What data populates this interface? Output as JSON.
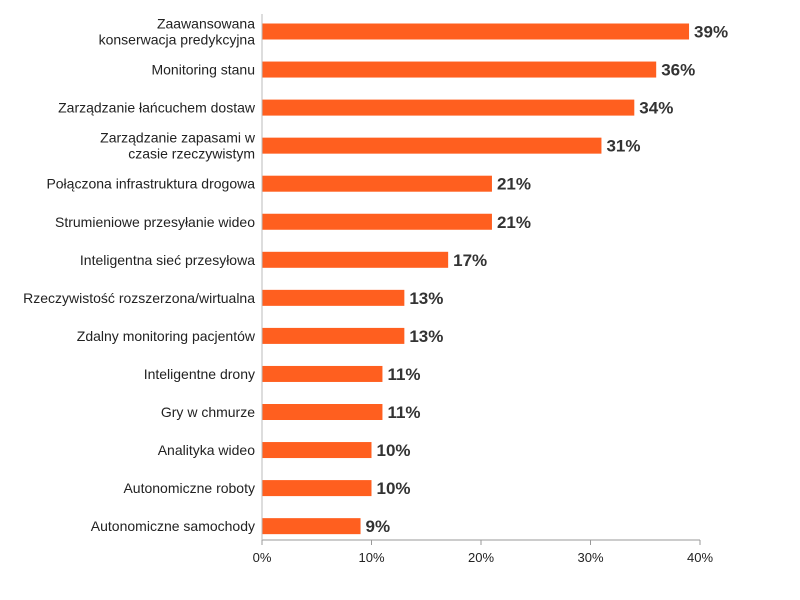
{
  "chart_data": {
    "type": "bar",
    "orientation": "horizontal",
    "categories": [
      [
        "Zaawansowana",
        "konserwacja predykcyjna"
      ],
      [
        "Monitoring stanu"
      ],
      [
        "Zarządzanie łańcuchem dostaw"
      ],
      [
        "Zarządzanie zapasami w",
        "czasie rzeczywistym"
      ],
      [
        "Połączona infrastruktura drogowa"
      ],
      [
        "Strumieniowe przesyłanie wideo"
      ],
      [
        "Inteligentna sieć przesyłowa"
      ],
      [
        "Rzeczywistość rozszerzona/wirtualna"
      ],
      [
        "Zdalny monitoring pacjentów"
      ],
      [
        "Inteligentne drony"
      ],
      [
        "Gry w chmurze"
      ],
      [
        "Analityka wideo"
      ],
      [
        "Autonomiczne roboty"
      ],
      [
        "Autonomiczne samochody"
      ]
    ],
    "values": [
      39,
      36,
      34,
      31,
      21,
      21,
      17,
      13,
      13,
      11,
      11,
      10,
      10,
      9
    ],
    "value_labels": [
      "39%",
      "36%",
      "34%",
      "31%",
      "21%",
      "21%",
      "17%",
      "13%",
      "13%",
      "11%",
      "11%",
      "10%",
      "10%",
      "9%"
    ],
    "xlim": [
      0,
      40
    ],
    "xticks": [
      0,
      10,
      20,
      30,
      40
    ],
    "xtick_labels": [
      "0%",
      "10%",
      "20%",
      "30%",
      "40%"
    ],
    "bar_color": "#FF5F1F",
    "grid": false,
    "title": "",
    "xlabel": "",
    "ylabel": ""
  }
}
